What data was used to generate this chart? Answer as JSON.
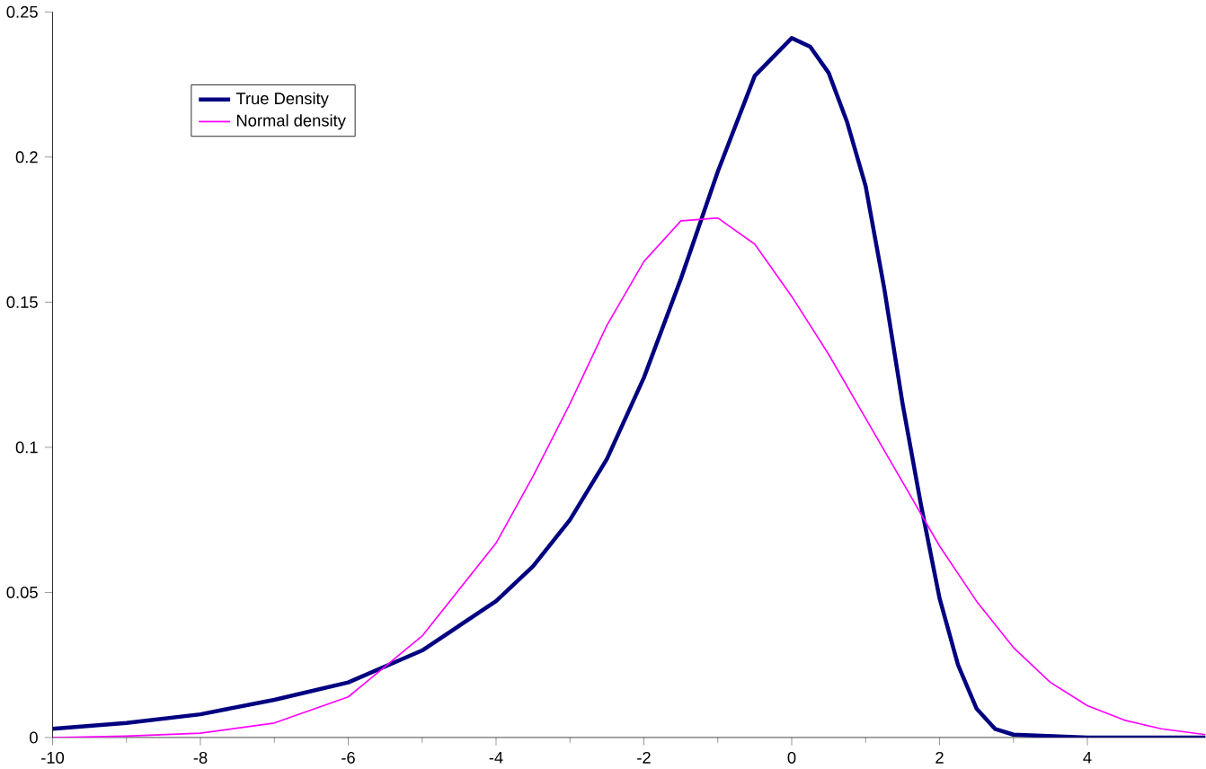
{
  "chart_data": {
    "type": "line",
    "xlim": [
      -10,
      5.6
    ],
    "ylim": [
      0,
      0.25
    ],
    "xticks": [
      -10,
      -8,
      -6,
      -4,
      -2,
      0,
      2,
      4
    ],
    "yticks": [
      0,
      0.05,
      0.1,
      0.15,
      0.2,
      0.25
    ],
    "legend": "top left",
    "grid": false,
    "marker": "none",
    "series": [
      {
        "name": "True Density",
        "color": "#000080",
        "x": [
          -10,
          -9,
          -8,
          -7,
          -6,
          -5,
          -4,
          -3.5,
          -3,
          -2.5,
          -2,
          -1.5,
          -1,
          -0.5,
          0,
          0.25,
          0.5,
          0.75,
          1,
          1.25,
          1.5,
          1.75,
          2,
          2.25,
          2.5,
          2.75,
          3,
          4,
          5.6
        ],
        "values": [
          0.003,
          0.005,
          0.008,
          0.013,
          0.019,
          0.03,
          0.047,
          0.059,
          0.075,
          0.096,
          0.124,
          0.158,
          0.195,
          0.228,
          0.241,
          0.238,
          0.229,
          0.212,
          0.19,
          0.155,
          0.115,
          0.08,
          0.048,
          0.025,
          0.01,
          0.003,
          0.001,
          0,
          0
        ]
      },
      {
        "name": "Normal density",
        "color": "#ff00ff",
        "x": [
          -10,
          -9,
          -8,
          -7,
          -6,
          -5,
          -4,
          -3.5,
          -3,
          -2.5,
          -2,
          -1.5,
          -1,
          -0.5,
          0,
          0.5,
          1,
          1.5,
          2,
          2.5,
          3,
          3.5,
          4,
          4.5,
          5,
          5.6
        ],
        "values": [
          0,
          0.0005,
          0.0015,
          0.005,
          0.014,
          0.035,
          0.067,
          0.09,
          0.115,
          0.142,
          0.164,
          0.178,
          0.179,
          0.17,
          0.152,
          0.132,
          0.11,
          0.088,
          0.066,
          0.047,
          0.031,
          0.019,
          0.011,
          0.006,
          0.003,
          0.001
        ]
      }
    ]
  }
}
